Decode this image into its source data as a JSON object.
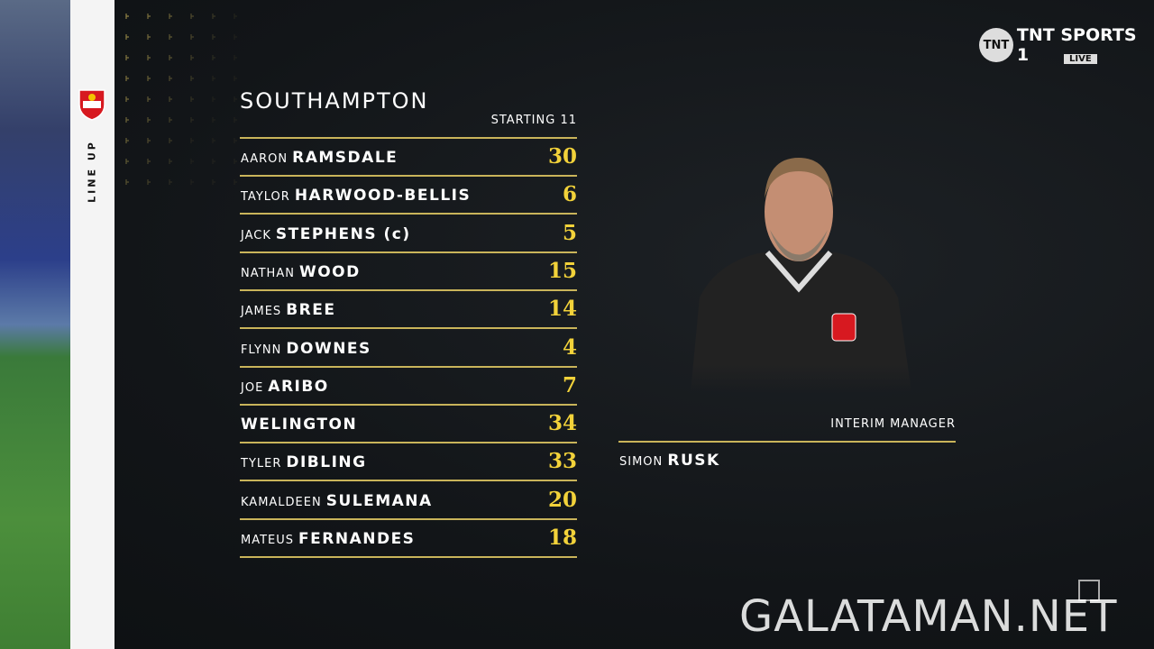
{
  "broadcaster": {
    "name": "TNT SPORTS 1",
    "badge": "LIVE"
  },
  "side_label": "LINE UP",
  "team": "SOUTHAMPTON",
  "subtitle": "STARTING 11",
  "players": [
    {
      "first": "AARON",
      "last": "RAMSDALE",
      "number": "30"
    },
    {
      "first": "TAYLOR",
      "last": "HARWOOD-BELLIS",
      "number": "6"
    },
    {
      "first": "JACK",
      "last": "STEPHENS (c)",
      "number": "5"
    },
    {
      "first": "NATHAN",
      "last": "WOOD",
      "number": "15"
    },
    {
      "first": "JAMES",
      "last": "BREE",
      "number": "14"
    },
    {
      "first": "FLYNN",
      "last": "DOWNES",
      "number": "4"
    },
    {
      "first": "JOE",
      "last": "ARIBO",
      "number": "7"
    },
    {
      "last": "WELINGTON",
      "number": "34"
    },
    {
      "first": "TYLER",
      "last": "DIBLING",
      "number": "33"
    },
    {
      "first": "KAMALDEEN",
      "last": "SULEMANA",
      "number": "20"
    },
    {
      "first": "MATEUS",
      "last": "FERNANDES",
      "number": "18"
    }
  ],
  "manager": {
    "role": "INTERIM MANAGER",
    "first": "SIMON",
    "last": "RUSK"
  },
  "watermark": "GALATAMAN.NET"
}
